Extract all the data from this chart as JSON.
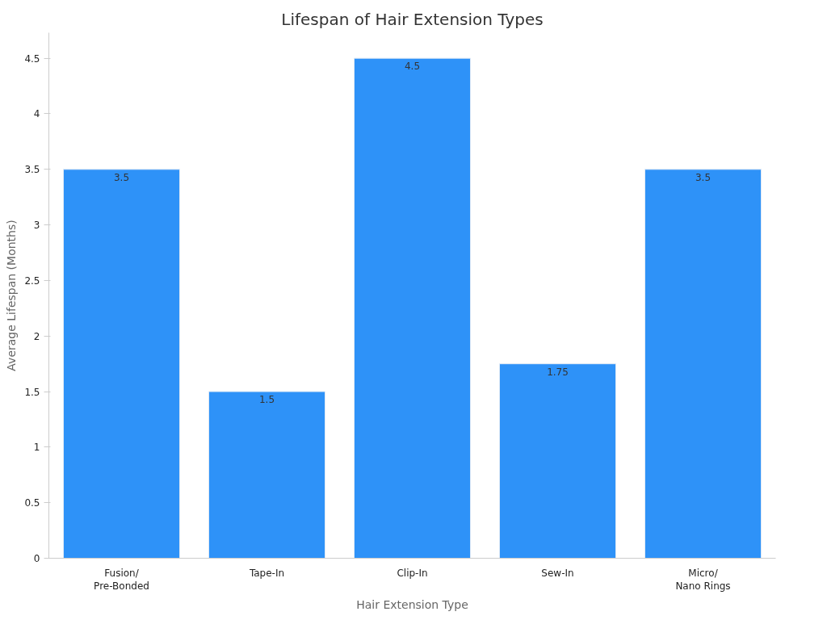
{
  "chart_data": {
    "type": "bar",
    "title": "Lifespan of Hair Extension Types",
    "xlabel": "Hair Extension Type",
    "ylabel": "Average Lifespan (Months)",
    "categories": [
      "Fusion/\nPre-Bonded",
      "Tape-In",
      "Clip-In",
      "Sew-In",
      "Micro/\nNano Rings"
    ],
    "values": [
      3.5,
      1.5,
      4.5,
      1.75,
      3.5
    ],
    "color": "#2e92f8",
    "data_labels": true,
    "ylim": [
      0,
      4.73
    ],
    "yticks": [
      0,
      0.5,
      1,
      1.5,
      2,
      2.5,
      3,
      3.5,
      4,
      4.5
    ],
    "grid": false
  }
}
